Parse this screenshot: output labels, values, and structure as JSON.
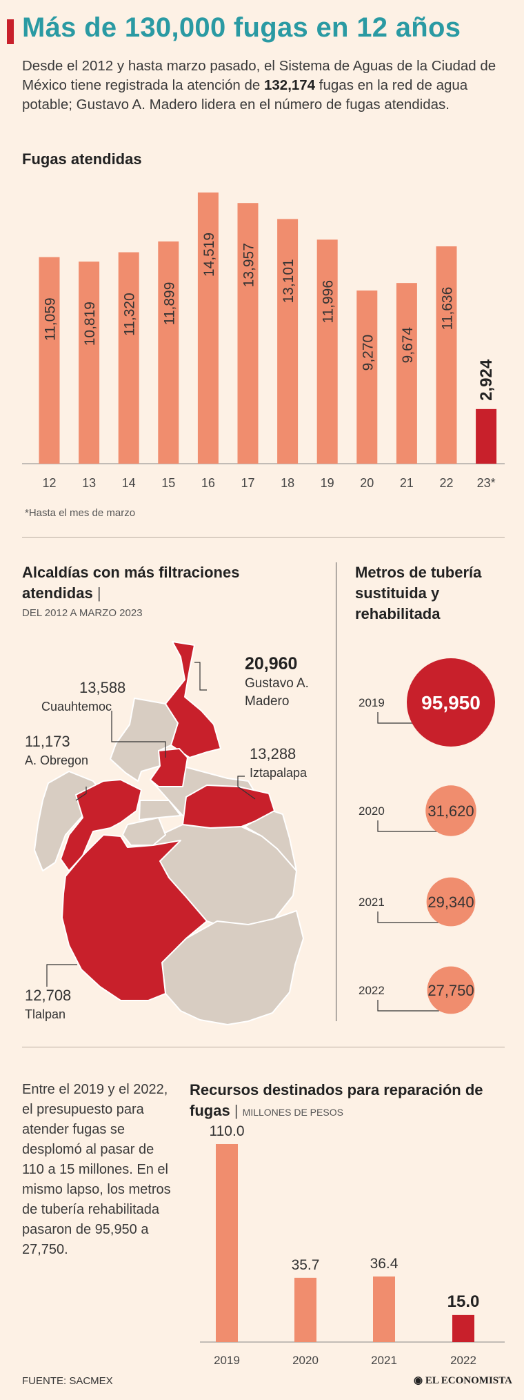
{
  "header": {
    "title": "Más de 130,000 fugas en 12 años",
    "intro_before": "Desde el 2012 y hasta marzo pasado, el Sistema de Aguas de la Ciudad de México tiene registrada la atención de ",
    "intro_highlight": "132,174",
    "intro_after": " fugas en la red de agua potable; Gustavo A. Madero lidera en el número de fugas atendidas."
  },
  "colors": {
    "salmon": "#f08d6e",
    "red": "#c8202b",
    "teal": "#2a9aa3",
    "gray": "#d8cdc2"
  },
  "chart_data": [
    {
      "type": "bar",
      "title": "Fugas atendidas",
      "categories": [
        "12",
        "13",
        "14",
        "15",
        "16",
        "17",
        "18",
        "19",
        "20",
        "21",
        "22",
        "23*"
      ],
      "values": [
        11059,
        10819,
        11320,
        11899,
        14519,
        13957,
        13101,
        11996,
        9270,
        9674,
        11636,
        2924
      ],
      "labels": [
        "11,059",
        "10,819",
        "11,320",
        "11,899",
        "14,519",
        "13,957",
        "13,101",
        "11,996",
        "9,270",
        "9,674",
        "11,636",
        "2,924"
      ],
      "highlight_index": 11,
      "footnote": "*Hasta el mes de marzo"
    },
    {
      "type": "bubble",
      "title": "Metros de tubería sustituida y rehabilitada",
      "categories": [
        "2019",
        "2020",
        "2021",
        "2022"
      ],
      "values": [
        95950,
        31620,
        29340,
        27750
      ],
      "labels": [
        "95,950",
        "31,620",
        "29,340",
        "27,750"
      ]
    },
    {
      "type": "bar",
      "title": "Recursos destinados para reparación de fugas",
      "unit": "MILLONES DE PESOS",
      "categories": [
        "2019",
        "2020",
        "2021",
        "2022"
      ],
      "values": [
        110.0,
        35.7,
        36.4,
        15.0
      ],
      "labels": [
        "110.0",
        "35.7",
        "36.4",
        "15.0"
      ],
      "highlight_index": 3
    }
  ],
  "map": {
    "title": "Alcaldías con más filtraciones atendidas",
    "subtitle": "DEL 2012 A MARZO 2023",
    "callouts": {
      "gam": {
        "value": "20,960",
        "name1": "Gustavo A.",
        "name2": "Madero"
      },
      "cuauhtemoc": {
        "value": "13,588",
        "name": "Cuauhtemoc"
      },
      "obregon": {
        "value": "11,173",
        "name": "A. Obregon"
      },
      "iztapalapa": {
        "value": "13,288",
        "name": "Iztapalapa"
      },
      "tlalpan": {
        "value": "12,708",
        "name": "Tlalpan"
      }
    }
  },
  "summary": "Entre el 2019 y el 2022, el presupuesto para atender fugas se desplomó al pasar de 110 a 15 millones. En el mismo lapso, los metros de tubería rehabilitada pasaron de 95,950 a 27,750.",
  "footer": {
    "source": "FUENTE:  SACMEX",
    "logo": "EL ECONOMISTA"
  }
}
